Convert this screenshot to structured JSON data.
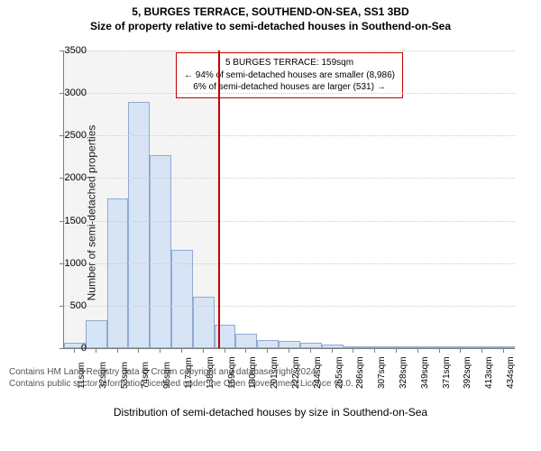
{
  "title_main": "5, BURGES TERRACE, SOUTHEND-ON-SEA, SS1 3BD",
  "title_sub": "Size of property relative to semi-detached houses in Southend-on-Sea",
  "ylabel": "Number of semi-detached properties",
  "xaxis_title": "Distribution of semi-detached houses by size in Southend-on-Sea",
  "footer_line1": "Contains HM Land Registry data © Crown copyright and database right 2024.",
  "footer_line2": "Contains public sector information licensed under the Open Government Licence v3.0.",
  "annot": {
    "line1": "5 BURGES TERRACE: 159sqm",
    "line2": "← 94% of semi-detached houses are smaller (8,986)",
    "line3": "6% of semi-detached houses are larger (531) →"
  },
  "chart": {
    "type": "histogram",
    "ylim": [
      0,
      3500
    ],
    "ytick_step": 500,
    "marker_value": 159,
    "x_min": 11,
    "x_max": 445,
    "xticks": [
      11,
      32,
      53,
      74,
      95,
      117,
      138,
      159,
      180,
      201,
      222,
      244,
      265,
      286,
      307,
      328,
      349,
      371,
      392,
      413,
      434
    ],
    "xtick_suffix": "sqm",
    "bar_fill": "#d6e4f5",
    "bar_border": "#8faad0",
    "marker_color": "#c40000",
    "shade_color": "rgba(180,180,180,0.15)",
    "grid_color": "#cccccc",
    "bars": [
      {
        "x": 11,
        "v": 60
      },
      {
        "x": 32,
        "v": 330
      },
      {
        "x": 53,
        "v": 1760
      },
      {
        "x": 74,
        "v": 2900
      },
      {
        "x": 95,
        "v": 2270
      },
      {
        "x": 117,
        "v": 1160
      },
      {
        "x": 138,
        "v": 600
      },
      {
        "x": 159,
        "v": 280
      },
      {
        "x": 180,
        "v": 170
      },
      {
        "x": 201,
        "v": 100
      },
      {
        "x": 222,
        "v": 80
      },
      {
        "x": 244,
        "v": 60
      },
      {
        "x": 265,
        "v": 40
      },
      {
        "x": 286,
        "v": 10
      },
      {
        "x": 307,
        "v": 10
      },
      {
        "x": 328,
        "v": 8
      },
      {
        "x": 349,
        "v": 6
      },
      {
        "x": 371,
        "v": 4
      },
      {
        "x": 392,
        "v": 4
      },
      {
        "x": 413,
        "v": 3
      },
      {
        "x": 434,
        "v": 3
      }
    ]
  }
}
